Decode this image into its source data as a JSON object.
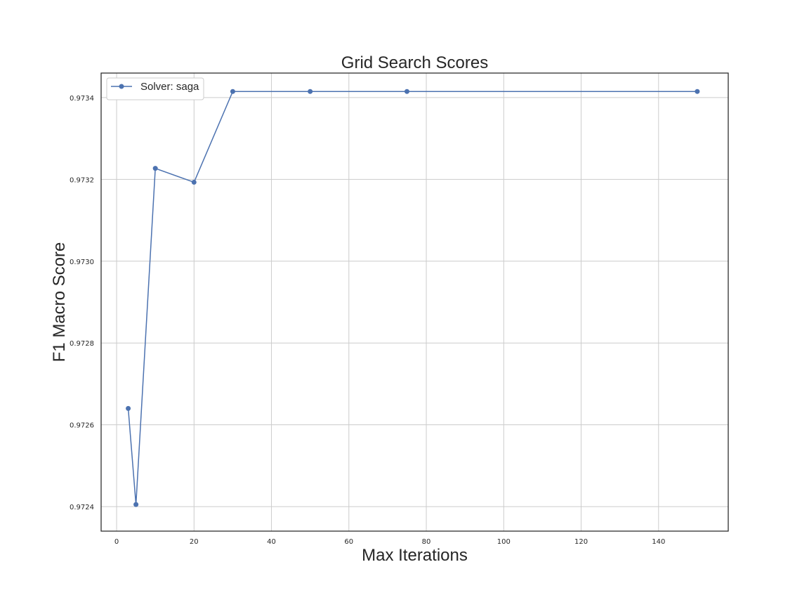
{
  "chart_data": {
    "type": "line",
    "title": "Grid Search Scores",
    "xlabel": "Max Iterations",
    "ylabel": "F1 Macro Score",
    "xlim": [
      -4,
      158
    ],
    "ylim": [
      0.97234,
      0.97346
    ],
    "x_ticks": [
      0,
      20,
      40,
      60,
      80,
      100,
      120,
      140
    ],
    "y_ticks": [
      0.9724,
      0.9726,
      0.9728,
      0.973,
      0.9732,
      0.9734
    ],
    "grid": true,
    "legend_position": "top-left",
    "series": [
      {
        "name": "Solver: saga",
        "color": "#4c72b0",
        "marker": "circle",
        "x": [
          3,
          5,
          10,
          20,
          30,
          50,
          75,
          150
        ],
        "y": [
          0.97264,
          0.972405,
          0.973227,
          0.973193,
          0.973415,
          0.973415,
          0.973415,
          0.973415
        ]
      }
    ]
  }
}
